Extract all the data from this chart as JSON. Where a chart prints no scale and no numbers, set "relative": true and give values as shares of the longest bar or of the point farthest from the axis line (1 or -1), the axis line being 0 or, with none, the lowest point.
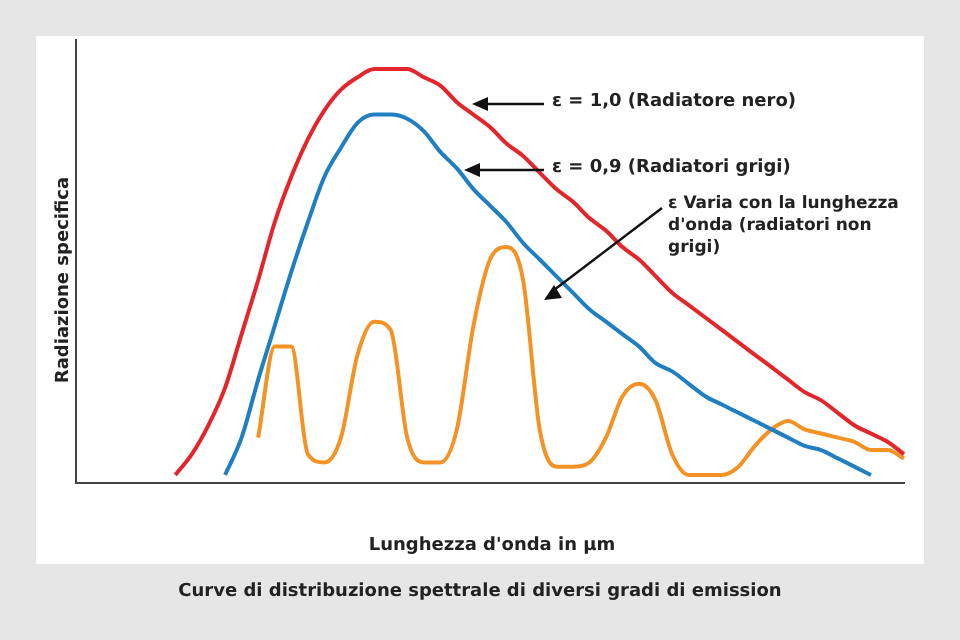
{
  "chart_data": {
    "type": "line",
    "relative": true,
    "title": "Curve di distribuzione spettrale di diversi gradi di emission",
    "xlabel": "Lunghezza d'onda in µm",
    "ylabel": "Radiazione specifica",
    "categories": [
      null,
      null,
      null,
      null,
      null,
      null,
      null,
      null,
      null,
      null,
      null,
      null,
      null,
      null,
      null,
      null,
      null,
      null,
      null,
      null,
      null,
      null,
      null,
      null,
      null,
      null,
      null,
      null,
      null,
      null,
      null,
      null,
      null,
      null,
      null,
      null,
      null,
      null,
      null,
      null,
      null,
      null,
      null,
      null,
      null,
      null,
      null,
      null,
      null,
      null,
      null
    ],
    "series": [
      {
        "color": "#e3262b",
        "values": [
          null,
          null,
          null,
          null,
          null,
          null,
          0.02,
          0.07,
          0.14,
          0.23,
          0.36,
          0.49,
          0.63,
          0.74,
          0.83,
          0.9,
          0.95,
          0.98,
          1,
          1,
          1,
          0.98,
          0.96,
          0.92,
          0.89,
          0.86,
          0.82,
          0.79,
          0.75,
          0.71,
          0.68,
          0.64,
          0.61,
          0.57,
          0.54,
          0.5,
          0.46,
          0.43,
          0.4,
          0.37,
          0.34,
          0.31,
          0.28,
          0.25,
          0.22,
          0.2,
          0.17,
          0.14,
          0.12,
          0.1,
          0.07
        ]
      },
      {
        "color": "#1f7fc1",
        "values": [
          null,
          null,
          null,
          null,
          null,
          null,
          null,
          null,
          null,
          0.02,
          0.11,
          0.25,
          0.38,
          0.51,
          0.63,
          0.74,
          0.81,
          0.87,
          0.89,
          0.89,
          0.88,
          0.85,
          0.8,
          0.76,
          0.71,
          0.67,
          0.63,
          0.58,
          0.54,
          0.5,
          0.46,
          0.42,
          0.39,
          0.36,
          0.33,
          0.29,
          0.27,
          0.24,
          0.21,
          0.19,
          0.17,
          0.15,
          0.13,
          0.11,
          0.09,
          0.08,
          0.06,
          0.04,
          0.02,
          null,
          null
        ]
      },
      {
        "color": "#f39325",
        "values": [
          null,
          null,
          null,
          null,
          null,
          null,
          null,
          null,
          null,
          null,
          null,
          0.11,
          0.33,
          0.33,
          0.07,
          0.05,
          0.11,
          0.31,
          0.39,
          0.37,
          0.11,
          0.05,
          0.05,
          0.13,
          0.38,
          0.54,
          0.57,
          0.49,
          0.13,
          0.04,
          0.04,
          0.05,
          0.11,
          0.21,
          0.24,
          0.2,
          0.07,
          0.02,
          0.02,
          0.02,
          0.04,
          0.09,
          0.13,
          0.15,
          0.13,
          0.12,
          0.11,
          0.1,
          0.08,
          0.08,
          0.06
        ]
      }
    ],
    "annotations": [
      "ε = 1,0 (Radiatore nero)",
      "ε = 0,9 (Radiatori grigi)",
      "ε   Varia con la lunghezza d'onda (radiatori non grigi)"
    ],
    "legend": false,
    "grid": false,
    "marker": "none",
    "line_style": "solid"
  }
}
